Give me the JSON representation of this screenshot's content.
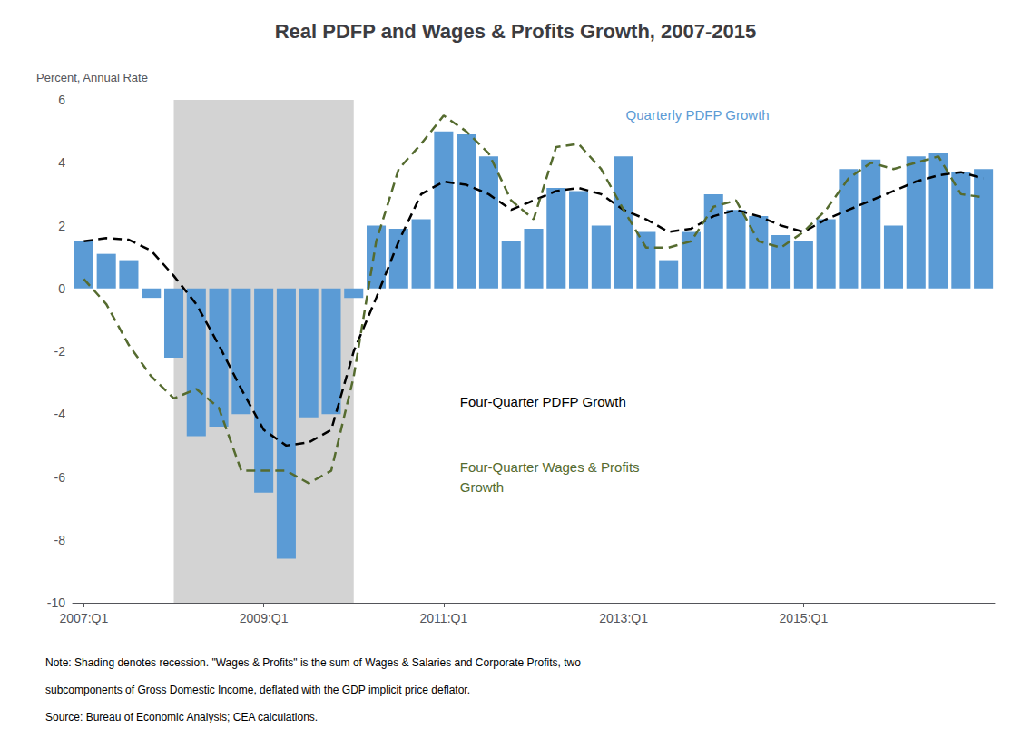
{
  "chart_data": {
    "type": "bar",
    "title": "Real PDFP and Wages & Profits Growth, 2007-2015",
    "ylabel": "Percent, Annual Rate",
    "categories": [
      "2007:Q1",
      null,
      null,
      null,
      null,
      null,
      null,
      null,
      "2009:Q1",
      null,
      null,
      null,
      null,
      null,
      null,
      null,
      "2011:Q1",
      null,
      null,
      null,
      null,
      null,
      null,
      null,
      "2013:Q1",
      null,
      null,
      null,
      null,
      null,
      null,
      null,
      "2015:Q1",
      null,
      null,
      null,
      null,
      null,
      null,
      null,
      null
    ],
    "series": [
      {
        "name": "Quarterly PDFP Growth",
        "type": "bar",
        "color": "#5B9BD5",
        "values": [
          1.5,
          1.1,
          0.9,
          -0.3,
          -2.2,
          -4.7,
          -4.4,
          -4.0,
          -6.5,
          -8.6,
          -4.1,
          -4.0,
          -0.3,
          2.0,
          1.9,
          2.2,
          5.0,
          4.9,
          4.2,
          1.5,
          1.9,
          3.2,
          3.1,
          2.0,
          4.2,
          1.8,
          0.9,
          1.8,
          3.0,
          2.5,
          2.3,
          1.7,
          1.5,
          2.2,
          3.8,
          4.1,
          2.0,
          4.2,
          4.3,
          3.7,
          3.8
        ]
      },
      {
        "name": "Four-Quarter PDFP Growth",
        "type": "line",
        "line_style": "dashed",
        "color": "#000000",
        "values": [
          1.5,
          1.6,
          1.55,
          1.2,
          0.4,
          -0.5,
          -1.8,
          -3.2,
          -4.5,
          -5.0,
          -4.9,
          -4.5,
          -2.0,
          -0.3,
          1.5,
          3.0,
          3.4,
          3.3,
          3.0,
          2.5,
          2.8,
          3.1,
          3.2,
          3.0,
          2.5,
          2.2,
          1.8,
          1.9,
          2.3,
          2.5,
          2.3,
          2.0,
          1.8,
          2.2,
          2.5,
          2.8,
          3.1,
          3.4,
          3.6,
          3.7,
          3.5
        ]
      },
      {
        "name": "Four-Quarter Wages & Profits\nGrowth",
        "type": "line",
        "line_style": "dashed",
        "color": "#556B2F",
        "values": [
          0.3,
          -0.5,
          -1.8,
          -2.8,
          -3.5,
          -3.2,
          -3.8,
          -5.8,
          -5.8,
          -5.8,
          -6.2,
          -5.8,
          -2.8,
          1.5,
          3.8,
          4.6,
          5.5,
          5.0,
          4.3,
          2.8,
          2.2,
          4.5,
          4.6,
          3.8,
          2.5,
          1.3,
          1.3,
          1.5,
          2.6,
          2.8,
          1.5,
          1.3,
          1.8,
          2.5,
          3.5,
          4.0,
          3.8,
          4.0,
          4.2,
          3.0,
          2.9
        ]
      }
    ],
    "shaded": {
      "start": 4,
      "end": 11,
      "color": "#D3D3D3"
    },
    "ylim": [
      -10,
      6
    ],
    "yticks": [
      -10,
      -8,
      -6,
      -4,
      -2,
      0,
      2,
      4,
      6
    ],
    "grid": false,
    "notes": [
      "Note: Shading denotes recession. \"Wages & Profits\" is the sum of Wages & Salaries and Corporate Profits, two",
      "subcomponents of Gross Domestic Income, deflated with the GDP implicit price deflator.",
      "Source: Bureau of Economic Analysis; CEA calculations."
    ]
  }
}
